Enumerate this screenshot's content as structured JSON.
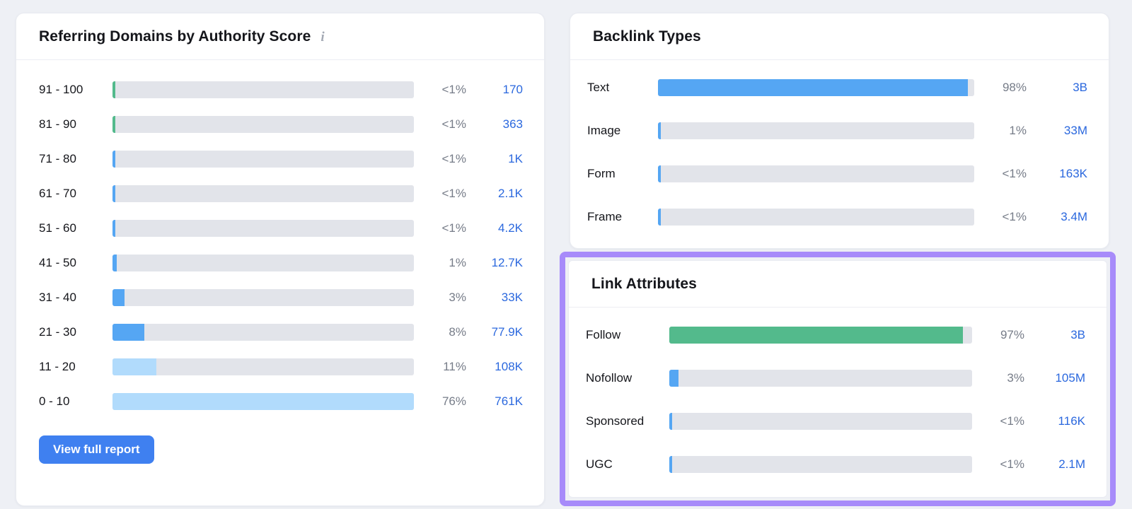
{
  "colors": {
    "green": "#53ba8c",
    "blue": "#55a6f3",
    "light_blue": "#b1dbfc",
    "track": "#e2e4ea",
    "link_blue": "#2b68de",
    "pct_gray": "#767c88",
    "button_blue": "#3f80f0",
    "highlight_purple": "#a78bfa"
  },
  "cards": {
    "referring_domains": {
      "title": "Referring Domains by Authority Score",
      "info_icon": "i",
      "button_label": "View full report"
    },
    "backlink_types": {
      "title": "Backlink Types"
    },
    "link_attributes": {
      "title": "Link Attributes"
    }
  },
  "chart_data": [
    {
      "id": "referring_domains",
      "type": "bar",
      "orientation": "horizontal",
      "title": "Referring Domains by Authority Score",
      "categories": [
        "91 - 100",
        "81 - 90",
        "71 - 80",
        "61 - 70",
        "51 - 60",
        "41 - 50",
        "31 - 40",
        "21 - 30",
        "11 - 20",
        "0 - 10"
      ],
      "pct_labels": [
        "<1%",
        "<1%",
        "<1%",
        "<1%",
        "<1%",
        "1%",
        "3%",
        "8%",
        "11%",
        "76%"
      ],
      "pct_values": [
        0.5,
        0.5,
        0.5,
        0.5,
        0.5,
        1,
        3,
        8,
        11,
        76
      ],
      "counts": [
        "170",
        "363",
        "1K",
        "2.1K",
        "4.2K",
        "12.7K",
        "33K",
        "77.9K",
        "108K",
        "761K"
      ],
      "bar_colors": [
        "green",
        "green",
        "blue",
        "blue",
        "blue",
        "blue",
        "blue",
        "blue",
        "light_blue",
        "light_blue"
      ],
      "xmax": 76,
      "grid": false,
      "legend": false
    },
    {
      "id": "backlink_types",
      "type": "bar",
      "orientation": "horizontal",
      "title": "Backlink Types",
      "categories": [
        "Text",
        "Image",
        "Form",
        "Frame"
      ],
      "pct_labels": [
        "98%",
        "1%",
        "<1%",
        "<1%"
      ],
      "pct_values": [
        98,
        1,
        0.5,
        0.5
      ],
      "counts": [
        "3B",
        "33M",
        "163K",
        "3.4M"
      ],
      "bar_colors": [
        "blue",
        "blue",
        "blue",
        "blue"
      ],
      "xmax": 100,
      "grid": false,
      "legend": false
    },
    {
      "id": "link_attributes",
      "type": "bar",
      "orientation": "horizontal",
      "title": "Link Attributes",
      "categories": [
        "Follow",
        "Nofollow",
        "Sponsored",
        "UGC"
      ],
      "pct_labels": [
        "97%",
        "3%",
        "<1%",
        "<1%"
      ],
      "pct_values": [
        97,
        3,
        0.5,
        0.5
      ],
      "counts": [
        "3B",
        "105M",
        "116K",
        "2.1M"
      ],
      "bar_colors": [
        "green",
        "blue",
        "blue",
        "blue"
      ],
      "xmax": 100,
      "grid": false,
      "legend": false
    }
  ]
}
